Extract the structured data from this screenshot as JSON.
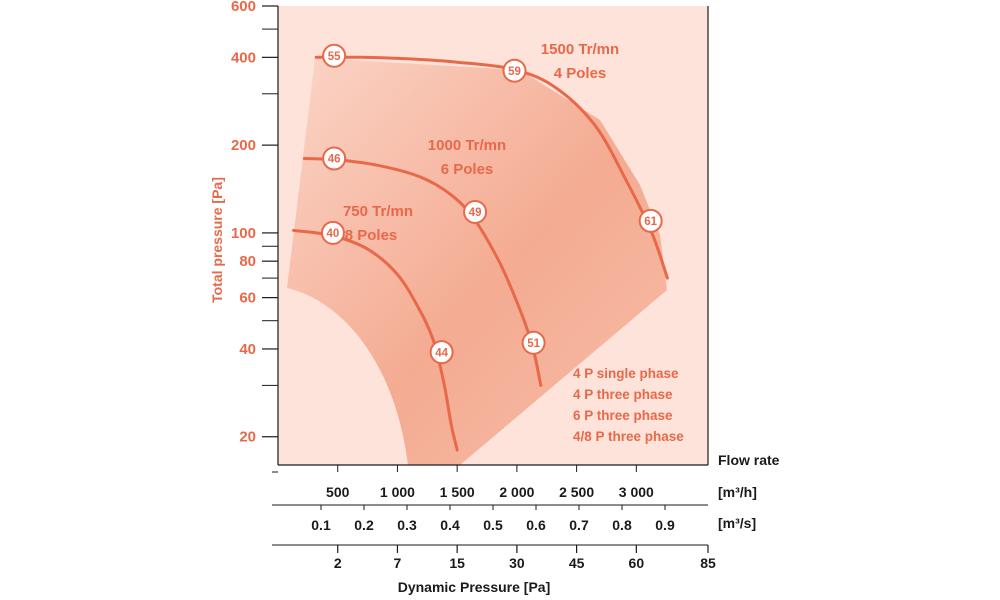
{
  "colors": {
    "accent": "#e8694a",
    "background_region": "#fde3da",
    "dark_region_strong": "#f3a58a",
    "dark_region_light": "#f9c7b6",
    "axis": "#1a1a1a"
  },
  "chart_data": {
    "type": "line",
    "y_axis": {
      "label": "Total pressure [Pa]",
      "scale": "log",
      "range": [
        16,
        600
      ],
      "tick_labels": [
        {
          "value": 600,
          "label": "600"
        },
        {
          "value": 400,
          "label": "400"
        },
        {
          "value": 200,
          "label": "200"
        },
        {
          "value": 100,
          "label": "100"
        },
        {
          "value": 80,
          "label": "80"
        },
        {
          "value": 60,
          "label": "60"
        },
        {
          "value": 40,
          "label": "40"
        },
        {
          "value": 20,
          "label": "20"
        }
      ],
      "minor_ticks": [
        500,
        300,
        90,
        70,
        50,
        30
      ]
    },
    "x_axis": {
      "label": "Flow rate",
      "unit_label": "[m³/h]",
      "range": [
        0,
        3600
      ],
      "tick_labels": [
        {
          "value": 500,
          "label": "500"
        },
        {
          "value": 1000,
          "label": "1 000"
        },
        {
          "value": 1500,
          "label": "1 500"
        },
        {
          "value": 2000,
          "label": "2 000"
        },
        {
          "value": 2500,
          "label": "2 500"
        },
        {
          "value": 3000,
          "label": "3 000"
        }
      ]
    },
    "x_axis_secondary": {
      "unit_label": "[m³/s]",
      "tick_labels": [
        {
          "value": 0.1,
          "label": "0.1"
        },
        {
          "value": 0.2,
          "label": "0.2"
        },
        {
          "value": 0.3,
          "label": "0.3"
        },
        {
          "value": 0.4,
          "label": "0.4"
        },
        {
          "value": 0.5,
          "label": "0.5"
        },
        {
          "value": 0.6,
          "label": "0.6"
        },
        {
          "value": 0.7,
          "label": "0.7"
        },
        {
          "value": 0.8,
          "label": "0.8"
        },
        {
          "value": 0.9,
          "label": "0.9"
        }
      ]
    },
    "dynamic_pressure_axis": {
      "label": "Dynamic Pressure [Pa]",
      "tick_labels": [
        {
          "flow": 500,
          "label": "2"
        },
        {
          "flow": 1000,
          "label": "7"
        },
        {
          "flow": 1500,
          "label": "15"
        },
        {
          "flow": 2000,
          "label": "30"
        },
        {
          "flow": 2500,
          "label": "45"
        },
        {
          "flow": 3000,
          "label": "60"
        },
        {
          "flow": 3600,
          "label": "85"
        }
      ]
    },
    "series": [
      {
        "name_lines": [
          "1500 Tr/mn",
          "4 Poles"
        ],
        "points": [
          [
            320,
            400
          ],
          [
            700,
            400
          ],
          [
            1100,
            395
          ],
          [
            1500,
            385
          ],
          [
            1950,
            365
          ],
          [
            2300,
            320
          ],
          [
            2650,
            235
          ],
          [
            2920,
            150
          ],
          [
            3130,
            100
          ],
          [
            3260,
            70
          ]
        ],
        "markers": [
          {
            "flow": 470,
            "pressure": 405,
            "label": "55"
          },
          {
            "flow": 1980,
            "pressure": 360,
            "label": "59"
          },
          {
            "flow": 3120,
            "pressure": 110,
            "label": "61"
          }
        ]
      },
      {
        "name_lines": [
          "1000 Tr/mn",
          "6 Poles"
        ],
        "points": [
          [
            220,
            180
          ],
          [
            500,
            178
          ],
          [
            850,
            170
          ],
          [
            1200,
            155
          ],
          [
            1450,
            135
          ],
          [
            1640,
            112
          ],
          [
            1850,
            80
          ],
          [
            2000,
            58
          ],
          [
            2100,
            45
          ],
          [
            2150,
            38
          ],
          [
            2200,
            30
          ]
        ],
        "markers": [
          {
            "flow": 470,
            "pressure": 180,
            "label": "46"
          },
          {
            "flow": 1650,
            "pressure": 118,
            "label": "49"
          },
          {
            "flow": 2140,
            "pressure": 42,
            "label": "51"
          }
        ]
      },
      {
        "name_lines": [
          "750 Tr/mn",
          "8 Poles"
        ],
        "points": [
          [
            130,
            102
          ],
          [
            450,
            98
          ],
          [
            750,
            88
          ],
          [
            1000,
            72
          ],
          [
            1180,
            55
          ],
          [
            1290,
            44
          ],
          [
            1350,
            36
          ],
          [
            1400,
            29
          ],
          [
            1450,
            22
          ],
          [
            1500,
            18
          ]
        ],
        "markers": [
          {
            "flow": 460,
            "pressure": 100,
            "label": "40"
          },
          {
            "flow": 1370,
            "pressure": 39,
            "label": "44"
          }
        ]
      }
    ],
    "legend_lines": [
      "4 P single phase",
      "4 P three phase",
      "6 P three phase",
      "4/8 P three phase"
    ]
  }
}
